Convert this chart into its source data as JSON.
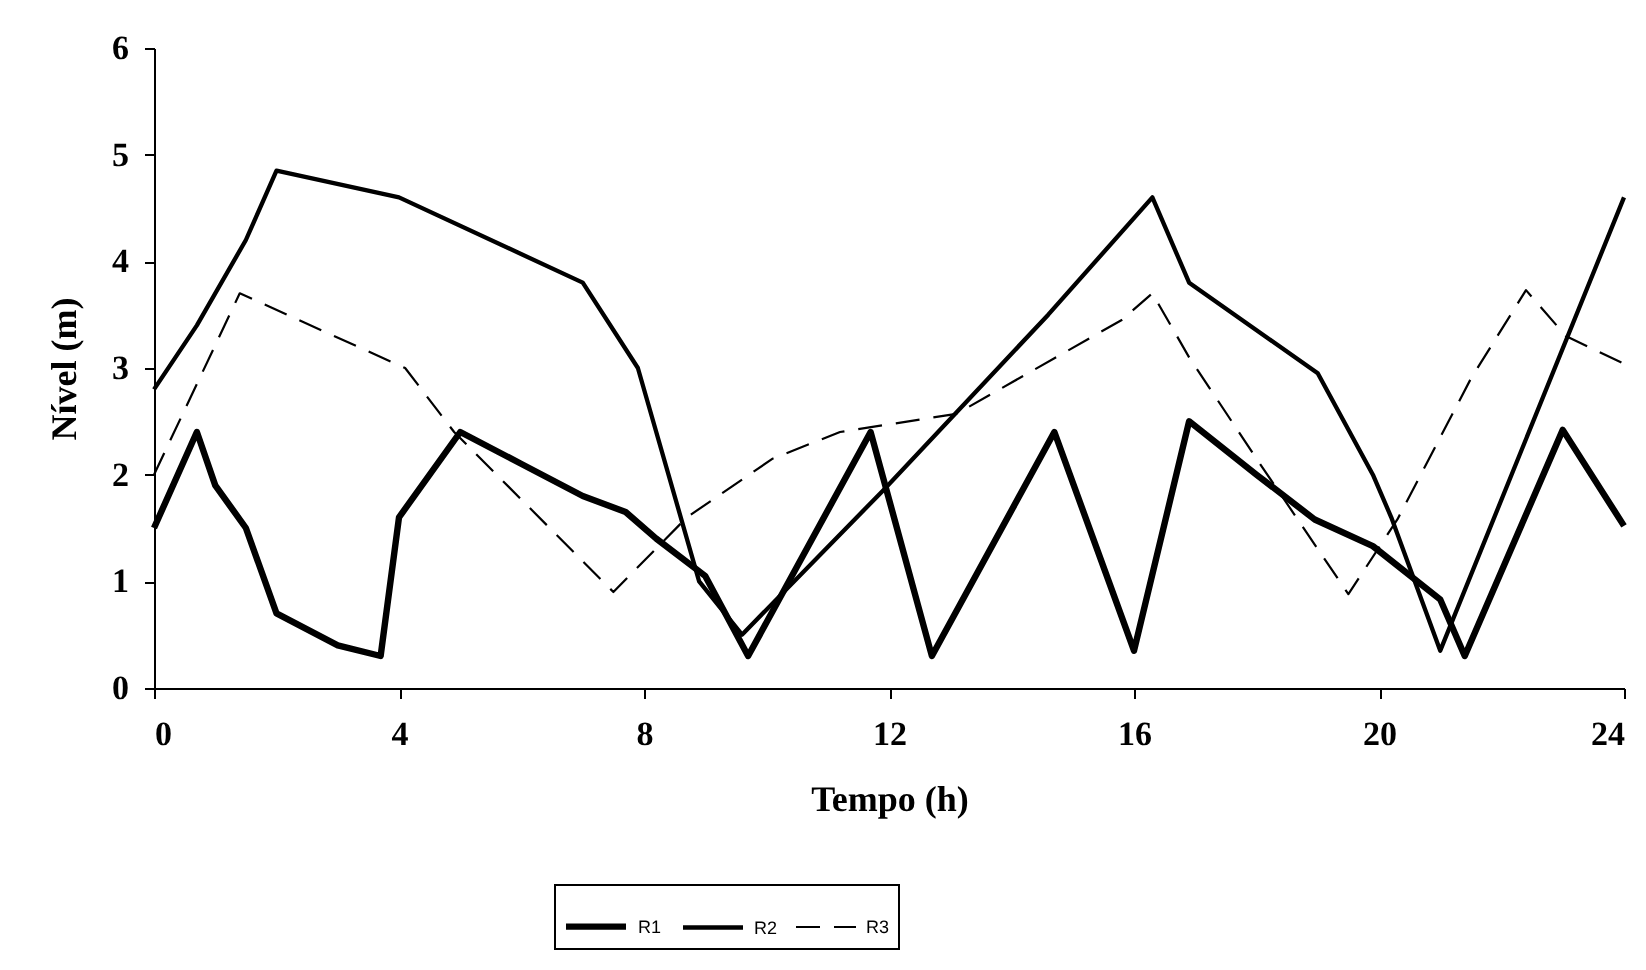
{
  "chart_data": {
    "type": "line",
    "xlabel": "Tempo (h)",
    "ylabel": "Nível (m)",
    "xlim": [
      0,
      24
    ],
    "xticks": [
      0,
      4,
      8,
      12,
      16,
      20,
      24
    ],
    "ylim": [
      0,
      6
    ],
    "yticks": [
      0,
      1,
      2,
      3,
      4,
      5,
      6
    ],
    "grid": false,
    "legend": "bottom",
    "series": [
      {
        "name": "R1",
        "color": "#000000",
        "line_style": "solid",
        "x": [
          0,
          0.7,
          1,
          1.5,
          2,
          3,
          3.7,
          4,
          5,
          6,
          7,
          7.7,
          8.2,
          9,
          9.7,
          11.7,
          12.7,
          14.7,
          16,
          16.9,
          18,
          18.95,
          19.9,
          21,
          21.4,
          23,
          24
        ],
        "values": [
          1.5,
          2.4,
          1.9,
          1.5,
          0.7,
          0.4,
          0.3,
          1.6,
          2.4,
          2.1,
          1.8,
          1.65,
          1.4,
          1.05,
          0.3,
          2.4,
          0.3,
          2.4,
          0.35,
          2.5,
          2.0,
          1.58,
          1.33,
          0.83,
          0.3,
          2.42,
          1.52
        ]
      },
      {
        "name": "R2",
        "color": "#000000",
        "line_style": "solid",
        "x": [
          0,
          0.7,
          1.5,
          2,
          4,
          7,
          7.9,
          8.9,
          9.6,
          11.9,
          14.6,
          16.3,
          16.9,
          19,
          19.9,
          20.2,
          21,
          24
        ],
        "values": [
          2.8,
          3.4,
          4.2,
          4.85,
          4.6,
          3.8,
          3.0,
          1.0,
          0.5,
          1.85,
          3.5,
          4.6,
          3.8,
          2.95,
          2.0,
          1.6,
          0.35,
          4.6
        ]
      },
      {
        "name": "R3",
        "color": "#000000",
        "line_style": "dashed",
        "x": [
          0,
          1.4,
          4.1,
          4.9,
          7.5,
          8.7,
          10.1,
          11.2,
          13.1,
          15.8,
          16.3,
          16.9,
          18,
          19.5,
          20.3,
          21.5,
          22.4,
          23.05,
          24
        ],
        "values": [
          2.0,
          3.7,
          3.0,
          2.4,
          0.9,
          1.6,
          2.15,
          2.4,
          2.57,
          3.45,
          3.7,
          3.1,
          2.15,
          0.88,
          1.58,
          2.9,
          3.73,
          3.3,
          3.04
        ]
      }
    ]
  }
}
